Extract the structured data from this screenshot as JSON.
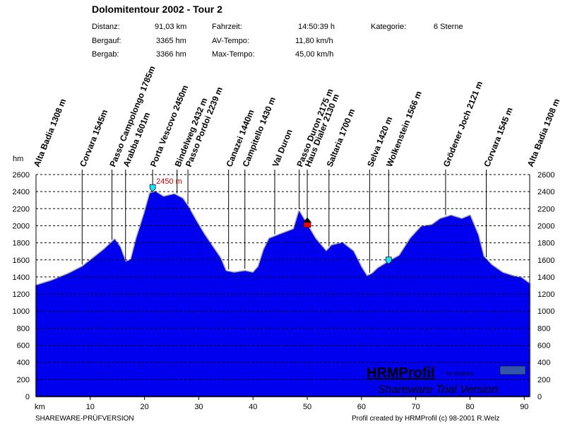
{
  "header": {
    "title": "Dolomitentour 2002 - Tour 2",
    "stats": [
      {
        "label": "Distanz:",
        "value": "91,03 km"
      },
      {
        "label": "Bergauf:",
        "value": "3365 hm"
      },
      {
        "label": "Bergab:",
        "value": "3366 hm"
      },
      {
        "label": "Fahrzeit:",
        "value": "14:50:39 h"
      },
      {
        "label": "AV-Tempo:",
        "value": "11,80 km/h"
      },
      {
        "label": "Max-Tempo:",
        "value": "45,00 km/h"
      },
      {
        "label": "Kategorie:",
        "value": "6 Sterne"
      }
    ]
  },
  "footer": {
    "left": "SHAREWARE-PRÜFVERSION",
    "right": "Profil created by HRMProfil (c) 98-2001 R.Welz"
  },
  "watermark": {
    "brand": "HRMProfil",
    "sub": "für Windows",
    "text": "Shareware Trial  Version"
  },
  "colors": {
    "fill": "#0000ee",
    "outline": "#b0b0b0",
    "grid": "#000000"
  },
  "chart_data": {
    "type": "area",
    "xlabel": "km",
    "ylabel": "hm",
    "xlim": [
      0,
      91
    ],
    "ylim": [
      0,
      2600
    ],
    "xticks": [
      10,
      20,
      30,
      40,
      50,
      60,
      70,
      80,
      90
    ],
    "yticks": [
      0,
      200,
      400,
      600,
      800,
      1000,
      1200,
      1400,
      1600,
      1800,
      2000,
      2200,
      2400,
      2600
    ],
    "grid": "horizontal dashed",
    "max_label": "2450 m",
    "profile": {
      "x": [
        0,
        3,
        6,
        8.5,
        10.5,
        12.5,
        14.5,
        15.5,
        16.5,
        17.5,
        18.5,
        20,
        21,
        22,
        23.5,
        25.5,
        27,
        28,
        29.5,
        31,
        32.5,
        34,
        35,
        36.5,
        38.5,
        40,
        41,
        42,
        43,
        45,
        47.5,
        48.5,
        50,
        51.5,
        53.5,
        54.5,
        56.5,
        58.5,
        60,
        61,
        62,
        63,
        65,
        67,
        69,
        71,
        73,
        74.5,
        76.5,
        78.5,
        80,
        81.5,
        82.5,
        84,
        86,
        88,
        89.5,
        91
      ],
      "y": [
        1300,
        1360,
        1440,
        1520,
        1620,
        1720,
        1840,
        1750,
        1580,
        1600,
        1850,
        2150,
        2380,
        2400,
        2340,
        2370,
        2320,
        2230,
        2060,
        1900,
        1760,
        1620,
        1470,
        1450,
        1470,
        1450,
        1520,
        1720,
        1850,
        1900,
        1960,
        2170,
        2010,
        1850,
        1700,
        1770,
        1800,
        1700,
        1510,
        1410,
        1440,
        1500,
        1580,
        1650,
        1850,
        1990,
        2010,
        2080,
        2120,
        2080,
        2120,
        1890,
        1640,
        1540,
        1450,
        1410,
        1390,
        1320
      ]
    },
    "waypoints": [
      {
        "label": "Alta Badia 1308 m",
        "km": 0
      },
      {
        "label": "Corvara 1545m",
        "km": 8.5
      },
      {
        "label": "Passo Campolongo 1785m",
        "km": 14
      },
      {
        "label": "Arabba 1601m",
        "km": 16.5
      },
      {
        "label": "Porta Vescovo 2450m",
        "km": 21.5
      },
      {
        "label": "Bindelweg 2432 m",
        "km": 26
      },
      {
        "label": "Passo Pordoi 2239 m",
        "km": 28
      },
      {
        "label": "Canazei 1440m",
        "km": 35.5
      },
      {
        "label": "Campitello 1430 m",
        "km": 38.5
      },
      {
        "label": "Val Duron",
        "km": 44
      },
      {
        "label": "Passo Duron 2175 m",
        "km": 48.5
      },
      {
        "label": "Haus Dialer 2130 m",
        "km": 50
      },
      {
        "label": "Saltaria 1700 m",
        "km": 54
      },
      {
        "label": "Selva 1420 m",
        "km": 61.5
      },
      {
        "label": "Wolkenstein 1566 m",
        "km": 65
      },
      {
        "label": "Grödener Joch 2121 m",
        "km": 75.5
      },
      {
        "label": "Corvara 1545 m",
        "km": 83
      },
      {
        "label": "Alta Badia 1308 m",
        "km": 91
      }
    ],
    "markers": [
      {
        "icon": "cyan-flag-marker",
        "km": 21.5,
        "elevation": 2450
      },
      {
        "icon": "red-house-marker",
        "km": 50,
        "elevation": 2040
      },
      {
        "icon": "cyan-flag-marker",
        "km": 65,
        "elevation": 1600
      }
    ]
  }
}
